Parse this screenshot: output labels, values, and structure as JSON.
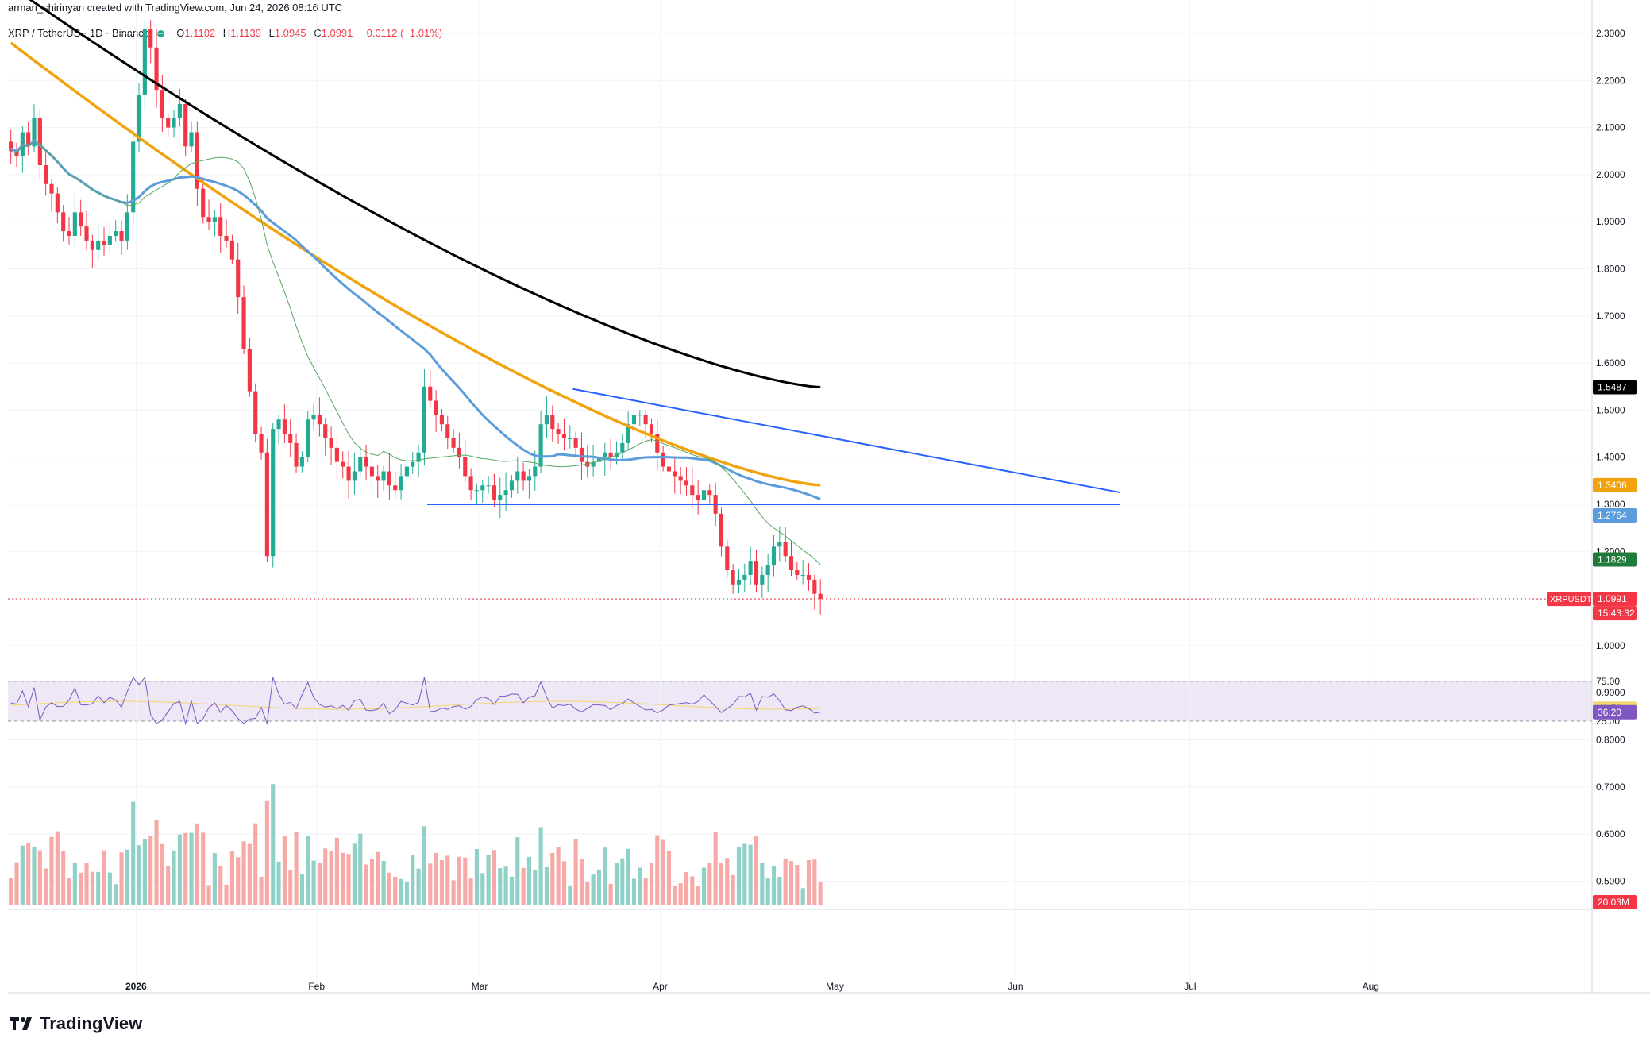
{
  "header": {
    "author_line": "arman_shirinyan created with TradingView.com, Jun 24, 2026 08:16 UTC",
    "symbol": "XRP / TetherUS · 1D · Binance",
    "open_label": "O",
    "open": "1.1102",
    "high_label": "H",
    "high": "1.1139",
    "low_label": "L",
    "low": "1.0945",
    "close_label": "C",
    "close": "1.0991",
    "change": "−0.0112 (−1.01%)"
  },
  "branding": {
    "logo_text": "TradingView"
  },
  "colors": {
    "up": "#22ab94",
    "down": "#f23645",
    "up_volume": "#8fd1c6",
    "down_volume": "#f7a9a7",
    "ma_black": "#000000",
    "ma_orange": "#f2a20c",
    "ma_blue": "#5b9cdb",
    "ma_green": "#56a65d",
    "trendline": "#2962ff",
    "rsi_line": "#7e57c2",
    "rsi_ma": "#f5d76e",
    "rsi_band": "#ede7f6"
  },
  "price_axis": {
    "ticks": [
      "2.3000",
      "2.2000",
      "2.1000",
      "2.0000",
      "1.9000",
      "1.8000",
      "1.7000",
      "1.6000",
      "1.5000",
      "1.4000",
      "1.3000",
      "1.2000",
      "1.1000",
      "1.0000",
      "0.9000",
      "0.8000",
      "0.7000",
      "0.6000",
      "0.5000"
    ],
    "badges": [
      {
        "text": "1.5487",
        "color": "#000000",
        "price": 1.5487
      },
      {
        "text": "1.3406",
        "color": "#f2a20c",
        "price": 1.3406
      },
      {
        "text": "1.2764",
        "color": "#5b9cdb",
        "price": 1.2764
      },
      {
        "text": "1.1829",
        "color": "#1e7b3a",
        "price": 1.1829
      }
    ],
    "last_price": {
      "symbol": "XRPUSDT",
      "value": "1.0991",
      "countdown": "15:43:32",
      "price": 1.0991
    },
    "volume_badge": "20.03M"
  },
  "rsi_axis": {
    "ticks": [
      "75.00",
      "25.00"
    ],
    "badges": [
      {
        "text": "40.76",
        "color": "#f5d76e"
      },
      {
        "text": "36.20",
        "color": "#7e57c2"
      }
    ]
  },
  "time_axis": {
    "labels": [
      "2026",
      "Feb",
      "Mar",
      "Apr",
      "May",
      "Jun",
      "Jul",
      "Aug"
    ]
  },
  "chart_data": {
    "type": "candlestick",
    "title": "XRP / TetherUS · 1D · Binance",
    "ylim": [
      0.45,
      2.33
    ],
    "x_range": [
      "2025-12-10",
      "2026-09-08"
    ],
    "last": {
      "open": 1.1102,
      "high": 1.1139,
      "low": 1.0945,
      "close": 1.0991,
      "change": -0.0112,
      "change_pct": -1.01
    },
    "closes": [
      2.05,
      2.04,
      2.09,
      2.06,
      2.12,
      2.02,
      1.98,
      1.96,
      1.92,
      1.88,
      1.87,
      1.92,
      1.89,
      1.86,
      1.84,
      1.86,
      1.85,
      1.87,
      1.88,
      1.86,
      1.92,
      2.07,
      2.17,
      2.31,
      2.27,
      2.18,
      2.12,
      2.1,
      2.12,
      2.15,
      2.06,
      2.09,
      1.97,
      1.91,
      1.9,
      1.91,
      1.87,
      1.86,
      1.82,
      1.74,
      1.63,
      1.54,
      1.45,
      1.41,
      1.19,
      1.46,
      1.48,
      1.45,
      1.43,
      1.38,
      1.4,
      1.48,
      1.49,
      1.47,
      1.44,
      1.42,
      1.39,
      1.38,
      1.35,
      1.37,
      1.4,
      1.38,
      1.36,
      1.35,
      1.37,
      1.34,
      1.33,
      1.36,
      1.38,
      1.39,
      1.41,
      1.55,
      1.52,
      1.49,
      1.47,
      1.44,
      1.42,
      1.4,
      1.36,
      1.33,
      1.33,
      1.34,
      1.34,
      1.31,
      1.32,
      1.33,
      1.35,
      1.37,
      1.35,
      1.36,
      1.38,
      1.47,
      1.49,
      1.46,
      1.45,
      1.44,
      1.44,
      1.42,
      1.39,
      1.38,
      1.39,
      1.4,
      1.41,
      1.4,
      1.41,
      1.43,
      1.47,
      1.49,
      1.49,
      1.47,
      1.45,
      1.41,
      1.38,
      1.37,
      1.36,
      1.35,
      1.34,
      1.32,
      1.31,
      1.33,
      1.32,
      1.28,
      1.21,
      1.16,
      1.13,
      1.14,
      1.15,
      1.18,
      1.13,
      1.15,
      1.17,
      1.21,
      1.22,
      1.19,
      1.16,
      1.15,
      1.15,
      1.14,
      1.11,
      1.0991
    ],
    "moving_averages": [
      {
        "color": "#000000",
        "last": 1.5487
      },
      {
        "color": "#f2a20c",
        "last": 1.3406
      },
      {
        "color": "#5b9cdb",
        "last": 1.2764
      },
      {
        "color": "#56a65d",
        "last": 1.1829
      }
    ],
    "trendlines": [
      {
        "from": [
          "2026-03-17",
          1.545
        ],
        "to": [
          "2026-06-19",
          1.325
        ]
      },
      {
        "from": [
          "2026-02-20",
          1.3
        ],
        "to": [
          "2026-06-19",
          1.3
        ]
      }
    ],
    "volume_last": "20.03M",
    "rsi": {
      "last": 36.2,
      "ma_last": 40.76,
      "bands": [
        75,
        25
      ]
    }
  }
}
